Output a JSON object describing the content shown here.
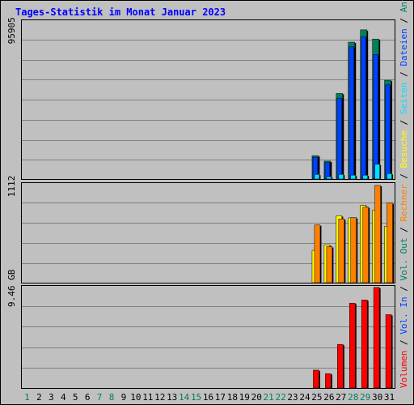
{
  "title": "Tages-Statistik im Monat Januar 2023",
  "colors": {
    "anfragen": "#00805c",
    "dateien": "#0040ff",
    "seiten": "#00e0ff",
    "besuche": "#ffff00",
    "rechner": "#ff8000",
    "vol_out": "#00805c",
    "vol_in": "#0040ff",
    "volumen": "#ff0000",
    "weekend_day": "#00805c",
    "weekday": "#000000",
    "separator": "#000000"
  },
  "chart_data": [
    {
      "type": "bar",
      "panel": "requests",
      "scale_label": "95905",
      "legend": [
        "Anfragen",
        "Dateien",
        "Seiten"
      ],
      "ylim": [
        0,
        95905
      ],
      "categories": [
        "1",
        "2",
        "3",
        "4",
        "5",
        "6",
        "7",
        "8",
        "9",
        "10",
        "11",
        "12",
        "13",
        "14",
        "15",
        "16",
        "17",
        "18",
        "19",
        "20",
        "21",
        "22",
        "23",
        "24",
        "25",
        "26",
        "27",
        "28",
        "29",
        "30",
        "31"
      ],
      "series": [
        {
          "name": "Anfragen",
          "color_key": "anfragen",
          "values": [
            0,
            0,
            0,
            0,
            0,
            0,
            0,
            0,
            0,
            0,
            0,
            0,
            0,
            0,
            0,
            0,
            0,
            0,
            0,
            0,
            0,
            0,
            0,
            0,
            15000,
            11500,
            55000,
            88000,
            95905,
            90000,
            63500
          ]
        },
        {
          "name": "Dateien",
          "color_key": "dateien",
          "values": [
            0,
            0,
            0,
            0,
            0,
            0,
            0,
            0,
            0,
            0,
            0,
            0,
            0,
            0,
            0,
            0,
            0,
            0,
            0,
            0,
            0,
            0,
            0,
            0,
            14000,
            10500,
            52000,
            85000,
            91500,
            80000,
            60500
          ]
        },
        {
          "name": "Seiten",
          "color_key": "seiten",
          "values": [
            0,
            0,
            0,
            0,
            0,
            0,
            0,
            0,
            0,
            0,
            0,
            0,
            0,
            0,
            0,
            0,
            0,
            0,
            0,
            0,
            0,
            0,
            0,
            0,
            3000,
            1500,
            3000,
            2500,
            2500,
            9500,
            3500
          ]
        }
      ]
    },
    {
      "type": "bar",
      "panel": "visits",
      "scale_label": "1112",
      "legend": [
        "Besuche",
        "Rechner"
      ],
      "ylim": [
        0,
        1112
      ],
      "categories": [
        "1",
        "2",
        "3",
        "4",
        "5",
        "6",
        "7",
        "8",
        "9",
        "10",
        "11",
        "12",
        "13",
        "14",
        "15",
        "16",
        "17",
        "18",
        "19",
        "20",
        "21",
        "22",
        "23",
        "24",
        "25",
        "26",
        "27",
        "28",
        "29",
        "30",
        "31"
      ],
      "series": [
        {
          "name": "Besuche",
          "color_key": "besuche",
          "values": [
            0,
            0,
            0,
            0,
            0,
            0,
            0,
            0,
            0,
            0,
            0,
            0,
            0,
            0,
            0,
            0,
            0,
            0,
            0,
            0,
            0,
            0,
            0,
            0,
            370,
            432,
            765,
            742,
            883,
            830,
            645
          ]
        },
        {
          "name": "Rechner",
          "color_key": "rechner",
          "values": [
            0,
            0,
            0,
            0,
            0,
            0,
            0,
            0,
            0,
            0,
            0,
            0,
            0,
            0,
            0,
            0,
            0,
            0,
            0,
            0,
            0,
            0,
            0,
            0,
            660,
            412,
            730,
            745,
            865,
            1112,
            910
          ]
        }
      ]
    },
    {
      "type": "bar",
      "panel": "volume",
      "scale_label": "9.46 GB",
      "legend": [
        "Vol. Out",
        "Vol. In",
        "Volumen"
      ],
      "ylim": [
        0,
        9.46
      ],
      "unit": "GB",
      "categories": [
        "1",
        "2",
        "3",
        "4",
        "5",
        "6",
        "7",
        "8",
        "9",
        "10",
        "11",
        "12",
        "13",
        "14",
        "15",
        "16",
        "17",
        "18",
        "19",
        "20",
        "21",
        "22",
        "23",
        "24",
        "25",
        "26",
        "27",
        "28",
        "29",
        "30",
        "31"
      ],
      "series": [
        {
          "name": "Volumen",
          "color_key": "volumen",
          "values": [
            0,
            0,
            0,
            0,
            0,
            0,
            0,
            0,
            0,
            0,
            0,
            0,
            0,
            0,
            0,
            0,
            0,
            0,
            0,
            0,
            0,
            0,
            0,
            0,
            1.68,
            1.34,
            4.1,
            7.98,
            8.28,
            9.46,
            6.9
          ]
        }
      ]
    }
  ],
  "days": [
    {
      "label": "1",
      "weekend": true
    },
    {
      "label": "2",
      "weekend": false
    },
    {
      "label": "3",
      "weekend": false
    },
    {
      "label": "4",
      "weekend": false
    },
    {
      "label": "5",
      "weekend": false
    },
    {
      "label": "6",
      "weekend": false
    },
    {
      "label": "7",
      "weekend": true
    },
    {
      "label": "8",
      "weekend": true
    },
    {
      "label": "9",
      "weekend": false
    },
    {
      "label": "10",
      "weekend": false
    },
    {
      "label": "11",
      "weekend": false
    },
    {
      "label": "12",
      "weekend": false
    },
    {
      "label": "13",
      "weekend": false
    },
    {
      "label": "14",
      "weekend": true
    },
    {
      "label": "15",
      "weekend": true
    },
    {
      "label": "16",
      "weekend": false
    },
    {
      "label": "17",
      "weekend": false
    },
    {
      "label": "18",
      "weekend": false
    },
    {
      "label": "19",
      "weekend": false
    },
    {
      "label": "20",
      "weekend": false
    },
    {
      "label": "21",
      "weekend": true
    },
    {
      "label": "22",
      "weekend": true
    },
    {
      "label": "23",
      "weekend": false
    },
    {
      "label": "24",
      "weekend": false
    },
    {
      "label": "25",
      "weekend": false
    },
    {
      "label": "26",
      "weekend": false
    },
    {
      "label": "27",
      "weekend": false
    },
    {
      "label": "28",
      "weekend": true
    },
    {
      "label": "29",
      "weekend": true
    },
    {
      "label": "30",
      "weekend": false
    },
    {
      "label": "31",
      "weekend": false
    }
  ],
  "legend_items": {
    "anfragen": "Anfragen",
    "dateien": "Dateien",
    "seiten": "Seiten",
    "besuche": "Besuche",
    "rechner": "Rechner",
    "vol_out": "Vol. Out",
    "vol_in": "Vol. In",
    "volumen": "Volumen",
    "separator": " / "
  }
}
